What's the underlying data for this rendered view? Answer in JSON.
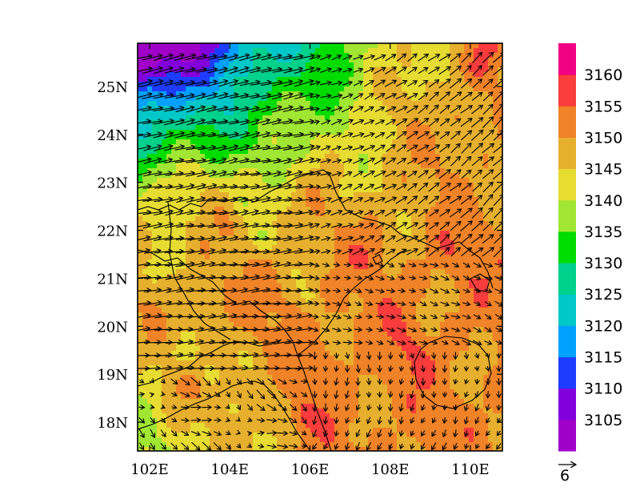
{
  "chart_data": {
    "type": "heatmap",
    "title": "",
    "xlabel": "",
    "ylabel": "",
    "x_ticks": [
      "102E",
      "104E",
      "106E",
      "108E",
      "110E"
    ],
    "x_tick_values": [
      102,
      104,
      106,
      108,
      110
    ],
    "y_ticks": [
      "18N",
      "19N",
      "20N",
      "21N",
      "22N",
      "23N",
      "24N",
      "25N"
    ],
    "y_tick_values": [
      18,
      19,
      20,
      21,
      22,
      23,
      24,
      25
    ],
    "xlim": [
      101.7,
      110.8
    ],
    "ylim": [
      17.4,
      25.9
    ],
    "colorbar": {
      "labels": [
        "3105",
        "3110",
        "3115",
        "3120",
        "3125",
        "3130",
        "3135",
        "3140",
        "3145",
        "3150",
        "3155",
        "3160"
      ],
      "levels": [
        3105,
        3110,
        3115,
        3120,
        3125,
        3130,
        3135,
        3140,
        3145,
        3150,
        3155,
        3160
      ],
      "colors": [
        "#a000c8",
        "#8200dc",
        "#1e3cff",
        "#00a0ff",
        "#00c8c8",
        "#00d28c",
        "#00dc00",
        "#a0e632",
        "#e6dc32",
        "#e6af2d",
        "#f08228",
        "#fa3c3c",
        "#f00082"
      ]
    },
    "field_description": "filled contour of height field with wind vectors",
    "reference_vector": {
      "label": "6",
      "value": 6
    },
    "grid": false,
    "legend": "colorbar-right"
  }
}
